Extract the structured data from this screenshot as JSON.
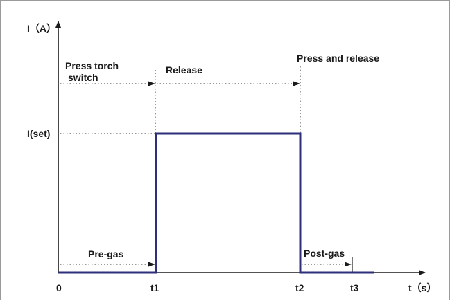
{
  "diagram": {
    "y_axis_label": "I（A）",
    "x_axis_label": "t（s）",
    "level_label": "I(set)",
    "origin_label": "0",
    "time_marks": [
      "t1",
      "t2",
      "t3"
    ],
    "annotations": {
      "press_torch_switch_line1": "Press torch",
      "press_torch_switch_line2": "switch",
      "release": "Release",
      "press_and_release": "Press and release",
      "pre_gas": "Pre-gas",
      "post_gas": "Post-gas"
    },
    "colors": {
      "current_curve": "#2e2f7a",
      "axis": "#1a1a1a",
      "frame": "#9a9a9a"
    }
  }
}
